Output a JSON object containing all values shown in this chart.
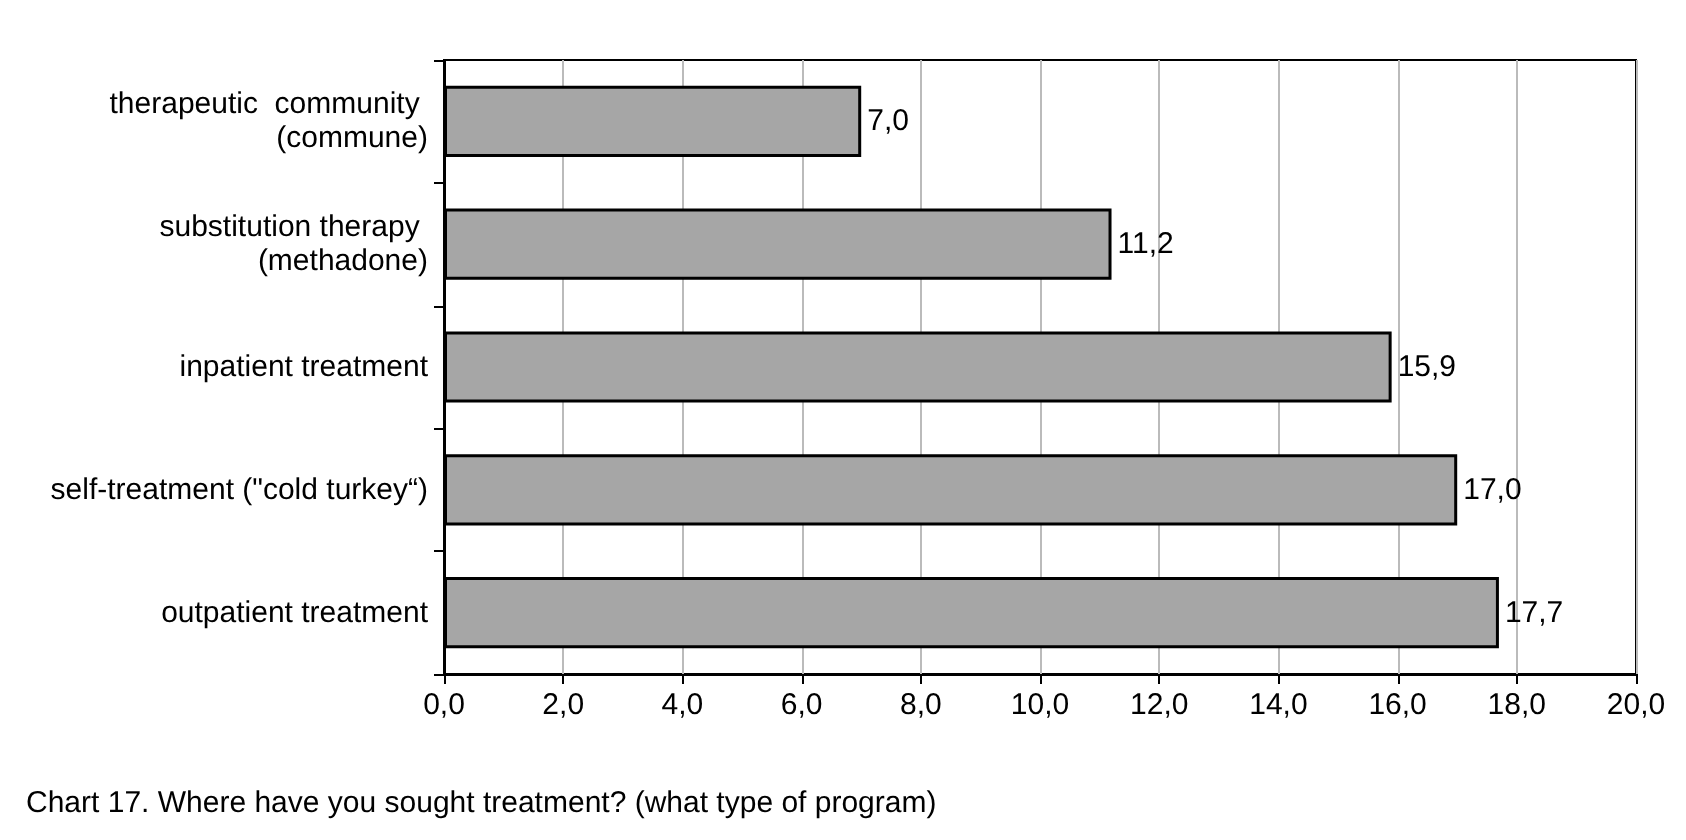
{
  "chart_data": {
    "type": "bar",
    "orientation": "horizontal",
    "title": "Chart 17. Where have you sought treatment? (what type of program)",
    "categories": [
      "therapeutic  community (commune)",
      "substitution therapy (methadone)",
      "inpatient treatment",
      "self-treatment (\"cold turkey“)",
      "outpatient treatment"
    ],
    "values": [
      7.0,
      11.2,
      15.9,
      17.0,
      17.7
    ],
    "value_labels": [
      "7,0",
      "11,2",
      "15,9",
      "17,0",
      "17,7"
    ],
    "color": "#a6a6a6",
    "xlim": [
      0,
      20
    ],
    "xticks": [
      {
        "value": 0,
        "label": "0,0"
      },
      {
        "value": 2,
        "label": "2,0"
      },
      {
        "value": 4,
        "label": "4,0"
      },
      {
        "value": 6,
        "label": "6,0"
      },
      {
        "value": 8,
        "label": "8,0"
      },
      {
        "value": 10,
        "label": "10,0"
      },
      {
        "value": 12,
        "label": "12,0"
      },
      {
        "value": 14,
        "label": "14,0"
      },
      {
        "value": 16,
        "label": "16,0"
      },
      {
        "value": 18,
        "label": "18,0"
      },
      {
        "value": 20,
        "label": "20,0"
      }
    ],
    "grid": "x"
  }
}
